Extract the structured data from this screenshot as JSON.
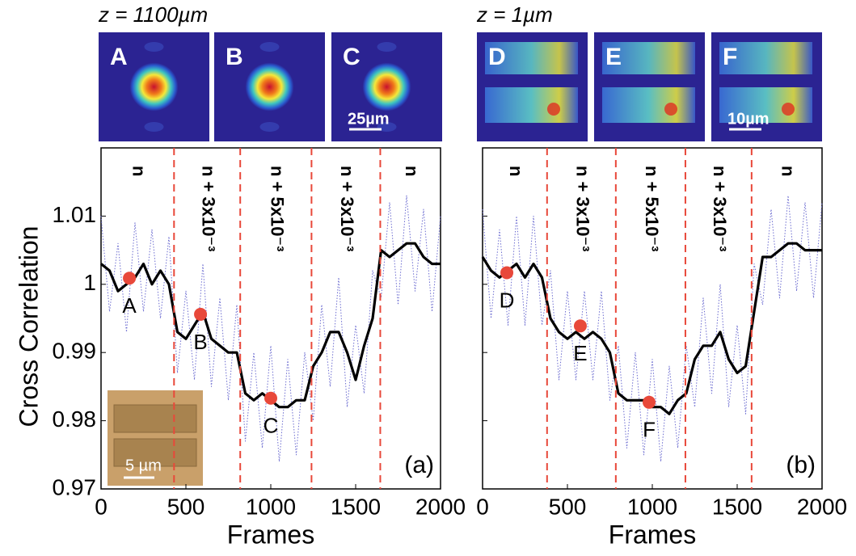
{
  "chart_data": [
    {
      "type": "line",
      "header": "z = 1100µm",
      "thumbnails": [
        "A",
        "B",
        "C"
      ],
      "scale_bar": "25µm",
      "inset_scale": "5 µm",
      "ylabel": "Cross Correlation",
      "xlabel": "Frames",
      "panel_label": "(a)",
      "xlim": [
        0,
        2000
      ],
      "xticks": [
        0,
        500,
        1000,
        1500,
        2000
      ],
      "ylim": [
        0.97,
        1.02
      ],
      "yticks": [
        0.97,
        0.98,
        0.99,
        1,
        1.01
      ],
      "x": [
        0,
        50,
        100,
        150,
        200,
        250,
        300,
        350,
        400,
        450,
        500,
        550,
        600,
        650,
        700,
        750,
        800,
        850,
        900,
        950,
        1000,
        1050,
        1100,
        1150,
        1200,
        1250,
        1300,
        1350,
        1400,
        1450,
        1500,
        1550,
        1600,
        1650,
        1700,
        1750,
        1800,
        1850,
        1900,
        1950,
        2000
      ],
      "series": [
        {
          "color": "#6b6bd0",
          "style": "dotted",
          "values": [
            1.01,
            0.996,
            1.006,
            0.993,
            1.009,
            0.996,
            1.008,
            0.995,
            1.007,
            0.987,
            0.999,
            0.986,
            1.003,
            0.985,
            0.998,
            0.983,
            0.997,
            0.977,
            0.99,
            0.976,
            0.991,
            0.974,
            0.989,
            0.975,
            0.99,
            0.98,
            0.997,
            0.985,
            1.001,
            0.982,
            0.994,
            0.984,
            1.002,
            0.998,
            1.012,
            0.997,
            1.013,
            0.999,
            1.011,
            0.996,
            1.01
          ]
        },
        {
          "color": "#000000",
          "style": "solid",
          "values": [
            1.003,
            1.002,
            0.999,
            1.0,
            1.001,
            1.003,
            1.0,
            1.002,
            1.0,
            0.993,
            0.992,
            0.994,
            0.996,
            0.992,
            0.991,
            0.99,
            0.99,
            0.984,
            0.983,
            0.984,
            0.983,
            0.982,
            0.982,
            0.983,
            0.983,
            0.988,
            0.99,
            0.993,
            0.993,
            0.99,
            0.986,
            0.991,
            0.995,
            1.005,
            1.004,
            1.005,
            1.006,
            1.006,
            1.004,
            1.003,
            1.003
          ]
        }
      ],
      "boundaries": [
        430,
        820,
        1240,
        1645
      ],
      "regions": [
        "n",
        "n + 3x10⁻³",
        "n + 5x10⁻³",
        "n + 3x10⁻³",
        "n"
      ],
      "points": [
        {
          "label": "A",
          "x": 167,
          "y": 1.0009
        },
        {
          "label": "B",
          "x": 586,
          "y": 0.9956
        },
        {
          "label": "C",
          "x": 1000,
          "y": 0.9833
        }
      ],
      "point_color": "#e8483a"
    },
    {
      "type": "line",
      "header": "z = 1µm",
      "thumbnails": [
        "D",
        "E",
        "F"
      ],
      "scale_bar": "10µm",
      "xlabel": "Frames",
      "panel_label": "(b)",
      "xlim": [
        0,
        2000
      ],
      "xticks": [
        0,
        500,
        1000,
        1500,
        2000
      ],
      "ylim": [
        0.97,
        1.02
      ],
      "yticks": [
        0.97,
        0.98,
        0.99,
        1,
        1.01
      ],
      "x": [
        0,
        50,
        100,
        150,
        200,
        250,
        300,
        350,
        400,
        450,
        500,
        550,
        600,
        650,
        700,
        750,
        800,
        850,
        900,
        950,
        1000,
        1050,
        1100,
        1150,
        1200,
        1250,
        1300,
        1350,
        1400,
        1450,
        1500,
        1550,
        1600,
        1650,
        1700,
        1750,
        1800,
        1850,
        1900,
        1950,
        2000
      ],
      "series": [
        {
          "color": "#6b6bd0",
          "style": "dotted",
          "values": [
            1.011,
            0.995,
            1.008,
            0.994,
            1.01,
            0.994,
            1.01,
            0.994,
            1.002,
            0.986,
            0.999,
            0.986,
            0.999,
            0.986,
            0.999,
            0.983,
            0.991,
            0.976,
            0.99,
            0.975,
            0.989,
            0.974,
            0.988,
            0.976,
            0.991,
            0.982,
            0.998,
            0.984,
            1.0,
            0.982,
            0.994,
            0.981,
            1.003,
            0.997,
            1.011,
            0.998,
            1.013,
            0.999,
            1.012,
            0.998,
            1.012
          ]
        },
        {
          "color": "#000000",
          "style": "solid",
          "values": [
            1.004,
            1.002,
            1.001,
            1.002,
            1.003,
            1.001,
            1.003,
            1.001,
            0.995,
            0.993,
            0.992,
            0.993,
            0.992,
            0.993,
            0.992,
            0.99,
            0.984,
            0.983,
            0.983,
            0.983,
            0.982,
            0.982,
            0.981,
            0.983,
            0.984,
            0.989,
            0.991,
            0.991,
            0.993,
            0.989,
            0.987,
            0.988,
            0.996,
            1.004,
            1.004,
            1.005,
            1.006,
            1.006,
            1.005,
            1.005,
            1.005
          ]
        }
      ],
      "boundaries": [
        380,
        785,
        1195,
        1585
      ],
      "regions": [
        "n",
        "n + 3x10⁻³",
        "n + 5x10⁻³",
        "n + 3x10⁻³",
        "n"
      ],
      "points": [
        {
          "label": "D",
          "x": 143,
          "y": 1.0017
        },
        {
          "label": "E",
          "x": 576,
          "y": 0.9939
        },
        {
          "label": "F",
          "x": 981,
          "y": 0.9827
        }
      ],
      "point_color": "#e8483a"
    }
  ]
}
